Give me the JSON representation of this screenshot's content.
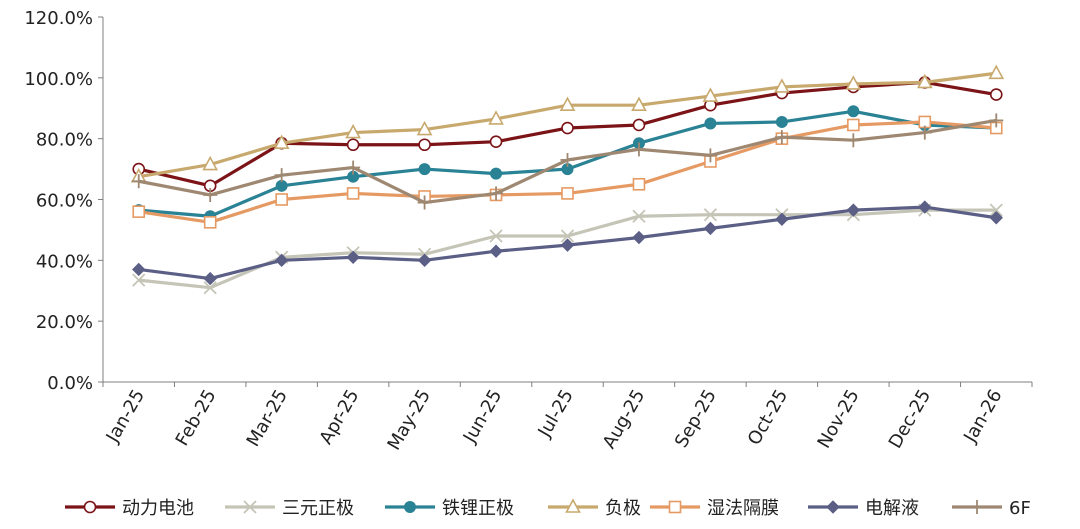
{
  "chart_data": {
    "type": "line",
    "title": "",
    "xlabel": "",
    "ylabel": "",
    "ylim": [
      0,
      120
    ],
    "yticks": [
      0,
      20,
      40,
      60,
      80,
      100,
      120
    ],
    "ytick_labels": [
      "0.0%",
      "20.0%",
      "40.0%",
      "60.0%",
      "80.0%",
      "100.0%",
      "120.0%"
    ],
    "categories": [
      "Jan-25",
      "Feb-25",
      "Mar-25",
      "Apr-25",
      "May-25",
      "Jun-25",
      "Jul-25",
      "Aug-25",
      "Sep-25",
      "Oct-25",
      "Nov-25",
      "Dec-25",
      "Jan-26"
    ],
    "grid": false,
    "legend": "bottom",
    "series": [
      {
        "name": "动力电池",
        "color": "#7b1317",
        "marker": "circle-open",
        "values": [
          70.0,
          64.5,
          78.5,
          78.0,
          78.0,
          79.0,
          83.5,
          84.5,
          91.0,
          95.0,
          97.0,
          98.5,
          94.5
        ]
      },
      {
        "name": "三元正极",
        "color": "#c5c5b7",
        "marker": "x",
        "values": [
          33.5,
          31.0,
          41.0,
          42.5,
          42.0,
          48.0,
          48.0,
          54.5,
          55.0,
          55.0,
          55.0,
          56.5,
          56.5
        ]
      },
      {
        "name": "铁锂正极",
        "color": "#2a8295",
        "marker": "circle",
        "values": [
          56.5,
          54.5,
          64.5,
          67.5,
          70.0,
          68.5,
          70.0,
          78.5,
          85.0,
          85.5,
          89.0,
          84.5,
          83.5
        ]
      },
      {
        "name": "负极",
        "color": "#c8a96d",
        "marker": "triangle-open",
        "values": [
          67.5,
          71.5,
          78.5,
          82.0,
          83.0,
          86.5,
          91.0,
          91.0,
          94.0,
          97.0,
          98.0,
          98.5,
          101.5
        ]
      },
      {
        "name": "湿法隔膜",
        "color": "#e69a63",
        "marker": "square-open",
        "values": [
          56.0,
          52.5,
          60.0,
          62.0,
          61.0,
          61.5,
          62.0,
          65.0,
          72.5,
          80.0,
          84.5,
          85.5,
          83.5
        ]
      },
      {
        "name": "电解液",
        "color": "#5b5f86",
        "marker": "diamond",
        "values": [
          37.0,
          34.0,
          40.0,
          41.0,
          40.0,
          43.0,
          45.0,
          47.5,
          50.5,
          53.5,
          56.5,
          57.5,
          54.0
        ]
      },
      {
        "name": "6F",
        "color": "#9e8872",
        "marker": "plus",
        "values": [
          66.0,
          61.5,
          68.0,
          70.5,
          59.0,
          62.0,
          73.0,
          76.5,
          74.5,
          80.5,
          79.5,
          82.0,
          86.0
        ]
      }
    ]
  }
}
